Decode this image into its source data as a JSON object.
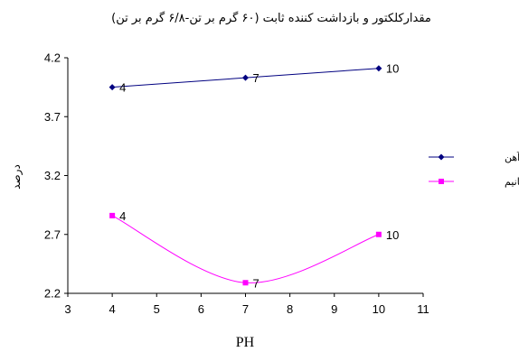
{
  "chart_data": {
    "type": "line",
    "title": "مقدارکلکتور و بازداشت کننده ثابت (۶۰ گرم بر تن-۶/۸ گرم بر تن)",
    "xlabel": "PH",
    "ylabel": "درصد",
    "xlim": [
      3,
      11
    ],
    "ylim": [
      2.2,
      4.2
    ],
    "x_ticks": [
      "3",
      "4",
      "5",
      "6",
      "7",
      "8",
      "9",
      "10",
      "11"
    ],
    "y_ticks": [
      "2.2",
      "2.7",
      "3.2",
      "3.7",
      "4.2"
    ],
    "grid": false,
    "legend_position": "right",
    "series": [
      {
        "name": "اکسید آهن",
        "color": "#000080",
        "marker": "diamond",
        "smooth": false,
        "x": [
          4,
          7,
          10
        ],
        "y": [
          3.95,
          4.03,
          4.11
        ],
        "labels": [
          "4",
          "7",
          "10"
        ]
      },
      {
        "name": "اکسید تیتانیم",
        "color": "#ff00ff",
        "marker": "square",
        "smooth": true,
        "x": [
          4,
          7,
          10
        ],
        "y": [
          2.86,
          2.29,
          2.7
        ],
        "labels": [
          "4",
          "7",
          "10"
        ]
      }
    ]
  }
}
